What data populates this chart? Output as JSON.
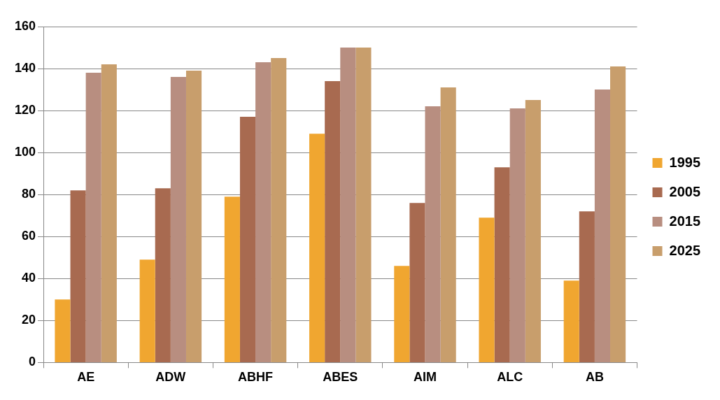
{
  "chart_data": {
    "type": "bar",
    "categories": [
      "AE",
      "ADW",
      "ABHF",
      "ABES",
      "AIM",
      "ALC",
      "AB"
    ],
    "series": [
      {
        "name": "1995",
        "color": "#f0a630",
        "values": [
          30,
          49,
          79,
          109,
          46,
          69,
          39
        ]
      },
      {
        "name": "2005",
        "color": "#a86a50",
        "values": [
          82,
          83,
          117,
          134,
          76,
          93,
          72
        ]
      },
      {
        "name": "2015",
        "color": "#b88e80",
        "values": [
          138,
          136,
          143,
          150,
          122,
          121,
          130
        ]
      },
      {
        "name": "2025",
        "color": "#c89e6c",
        "values": [
          142,
          139,
          145,
          150,
          131,
          125,
          141
        ]
      }
    ],
    "ylim": [
      0,
      160
    ],
    "yticks": [
      0,
      20,
      40,
      60,
      80,
      100,
      120,
      140,
      160
    ],
    "grid": "y",
    "legend": "right"
  }
}
